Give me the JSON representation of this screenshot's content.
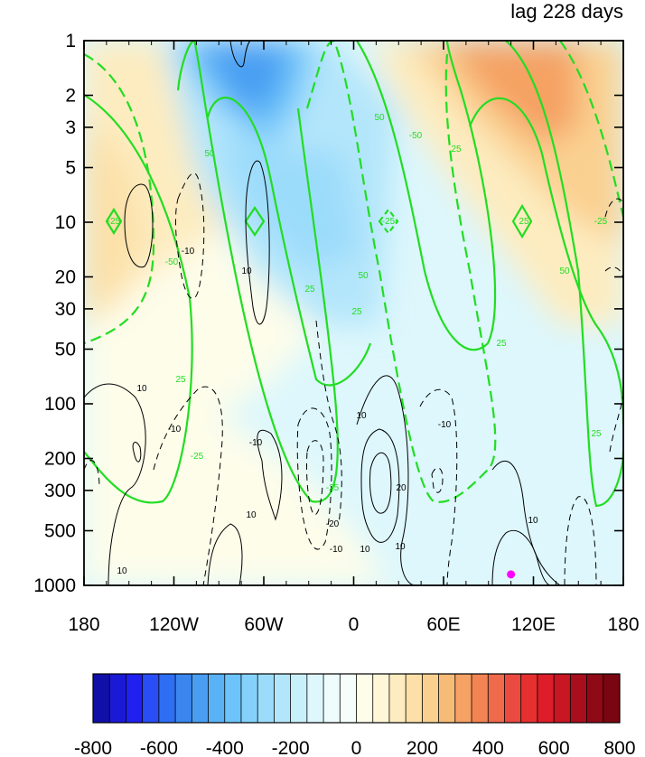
{
  "chart_data": {
    "type": "heatmap",
    "title": "lag 228 days",
    "x_ticks": [
      "180",
      "120W",
      "60W",
      "0",
      "60E",
      "120E",
      "180"
    ],
    "y_ticks": [
      "1",
      "2",
      "3",
      "5",
      "10",
      "20",
      "30",
      "50",
      "100",
      "200",
      "300",
      "500",
      "1000"
    ],
    "y_scale": "log",
    "y_reversed": true,
    "colorbar": {
      "ticks": [
        "-800",
        "-600",
        "-400",
        "-200",
        "0",
        "200",
        "400",
        "600",
        "800"
      ],
      "range": [
        -800,
        800
      ],
      "step": 50,
      "colors": [
        "#1010a8",
        "#1a1ad6",
        "#2020f0",
        "#2a4ef5",
        "#2e6ef2",
        "#3a86ef",
        "#4a9ef2",
        "#5ab2f6",
        "#6cc4fa",
        "#84d2fc",
        "#9cdcfb",
        "#b4e6fb",
        "#c8f0fb",
        "#ddf7fc",
        "#eefcfd",
        "#f6fefb",
        "#fdfdea",
        "#fef6d6",
        "#fdecc0",
        "#fce0a8",
        "#fad090",
        "#f7bb78",
        "#f5a264",
        "#f28454",
        "#ee6a4a",
        "#ea4a40",
        "#e63030",
        "#dd1e2a",
        "#c81622",
        "#a80e1c",
        "#8e0a16",
        "#7a0612"
      ]
    },
    "shaded_field_anomalies": [
      {
        "lon": -70,
        "pressure": 2,
        "value": -450
      },
      {
        "lon": -45,
        "pressure": 20,
        "value": -250
      },
      {
        "lon": 0,
        "pressure": 30,
        "value": -150
      },
      {
        "lon": 120,
        "pressure": 2,
        "value": 400
      },
      {
        "lon": 150,
        "pressure": 10,
        "value": 200
      },
      {
        "lon": -160,
        "pressure": 15,
        "value": 150
      },
      {
        "lon": -60,
        "pressure": 300,
        "value": 30
      }
    ],
    "green_contour_labels": [
      "25",
      "-25",
      "50",
      "-50",
      "25",
      "-25",
      "50",
      "-50",
      "25",
      "50",
      "25",
      "25",
      "-25",
      "-25",
      "25",
      "50",
      "25",
      "-25"
    ],
    "black_contour_labels": [
      "-10",
      "10",
      "10",
      "-10",
      "10",
      "-10",
      "10",
      "-20",
      "-10",
      "20",
      "10",
      "10",
      "10",
      "-10",
      "10"
    ],
    "marker": {
      "lon": 105,
      "pressure": 870,
      "color": "#ff00ff"
    },
    "grid": false
  }
}
